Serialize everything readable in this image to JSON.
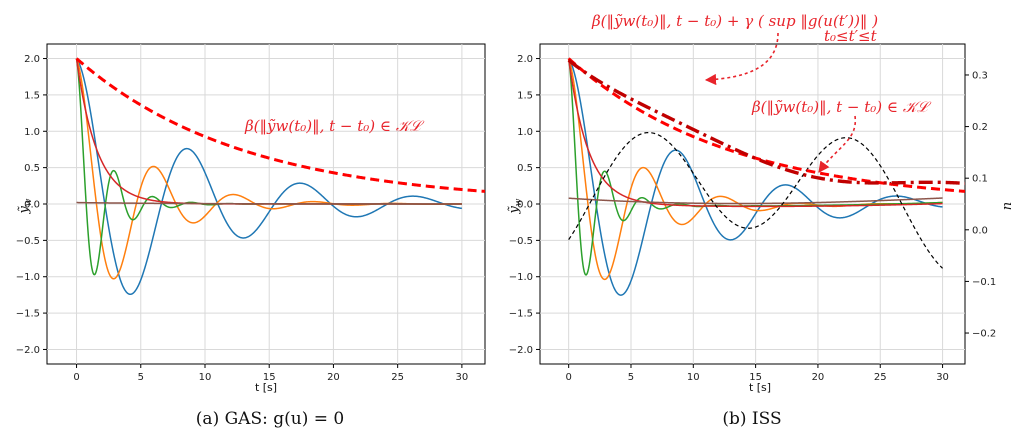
{
  "chart_data": [
    {
      "type": "line",
      "panel": "a",
      "caption": "(a) GAS: g(u) = 0",
      "xlabel": "t [s]",
      "ylabel": "ỹ_w",
      "xlim": [
        -2.3,
        31.8
      ],
      "ylim": [
        -2.2,
        2.2
      ],
      "xticks": [
        "0",
        "5",
        "10",
        "15",
        "20",
        "25",
        "30"
      ],
      "yticks": [
        "2.0",
        "1.5",
        "1.0",
        "0.5",
        "0.0",
        "−0.5",
        "−1.0",
        "−1.5",
        "−2.0"
      ],
      "grid": true,
      "annotations": [
        {
          "text": "β(‖ỹw(t₀)‖, t − t₀) ∈ 𝒦ℒ"
        }
      ],
      "series": [
        {
          "color": "#1f77b4",
          "model": "damped_cos",
          "A": 2.0,
          "tau": 9.0,
          "period": 8.8,
          "tmax": 30
        },
        {
          "color": "#ff7f0e",
          "model": "damped_cos",
          "A": 2.0,
          "tau": 4.5,
          "period": 6.2,
          "tmax": 30
        },
        {
          "color": "#2ca02c",
          "model": "damped_cos",
          "A": 2.0,
          "tau": 2.0,
          "period": 3.0,
          "tmax": 30
        },
        {
          "color": "#d62728",
          "model": "exp",
          "A": 2.0,
          "tau": 1.6,
          "tmax": 30
        },
        {
          "color": "#8c564b",
          "model": "exp",
          "A": 0.02,
          "tau": 8.0,
          "tmax": 30
        },
        {
          "color": "#ff0000",
          "model": "bound",
          "A": 2.0,
          "tau": 13.0,
          "dash": "9,5",
          "width": 3,
          "tmax": 31.8
        }
      ]
    },
    {
      "type": "line",
      "panel": "b",
      "caption": "(b) ISS",
      "xlabel": "t [s]",
      "ylabel": "ỹ_w",
      "ylabel_right": "u",
      "xlim": [
        -2.3,
        31.8
      ],
      "ylim": [
        -2.2,
        2.2
      ],
      "ylim_right": [
        -0.26,
        0.36
      ],
      "xticks": [
        "0",
        "5",
        "10",
        "15",
        "20",
        "25",
        "30"
      ],
      "yticks": [
        "2.0",
        "1.5",
        "1.0",
        "0.5",
        "0.0",
        "−0.5",
        "−1.0",
        "−1.5",
        "−2.0"
      ],
      "yticks_right": [
        "0.3",
        "0.2",
        "0.1",
        "0.0",
        "−0.1",
        "−0.2"
      ],
      "grid": true,
      "annotations": [
        {
          "text": "β(‖ỹw(t₀)‖, t − t₀) + γ ( sup ‖g(u(t′))‖ )",
          "sub": "t₀≤t′≤t"
        },
        {
          "text": "β(‖ỹw(t₀)‖, t − t₀) ∈ 𝒦ℒ"
        }
      ],
      "series": [
        {
          "color": "#1f77b4",
          "model": "damped_cos_drift",
          "A": 2.0,
          "tau": 9.0,
          "period": 8.8,
          "tmax": 30
        },
        {
          "color": "#ff7f0e",
          "model": "damped_cos_drift",
          "A": 2.0,
          "tau": 4.5,
          "period": 6.2,
          "tmax": 30
        },
        {
          "color": "#2ca02c",
          "model": "damped_cos_drift",
          "A": 2.0,
          "tau": 2.0,
          "period": 3.0,
          "tmax": 30
        },
        {
          "color": "#d62728",
          "model": "exp_drift",
          "A": 2.0,
          "tau": 1.6,
          "tmax": 30
        },
        {
          "color": "#8c564b",
          "model": "drift",
          "tmax": 30
        },
        {
          "color": "#000000",
          "model": "input_sine",
          "axis": "right",
          "dash": "4,3",
          "width": 1.2,
          "tmax": 30
        },
        {
          "color": "#ff0000",
          "model": "bound",
          "A": 2.0,
          "tau": 13.0,
          "dash": "9,5",
          "width": 3,
          "tmax": 31.8
        },
        {
          "color": "#c00000",
          "model": "iss_bound",
          "dash": "14,5,3,5",
          "width": 3.4,
          "tmax": 31.8
        }
      ]
    }
  ]
}
